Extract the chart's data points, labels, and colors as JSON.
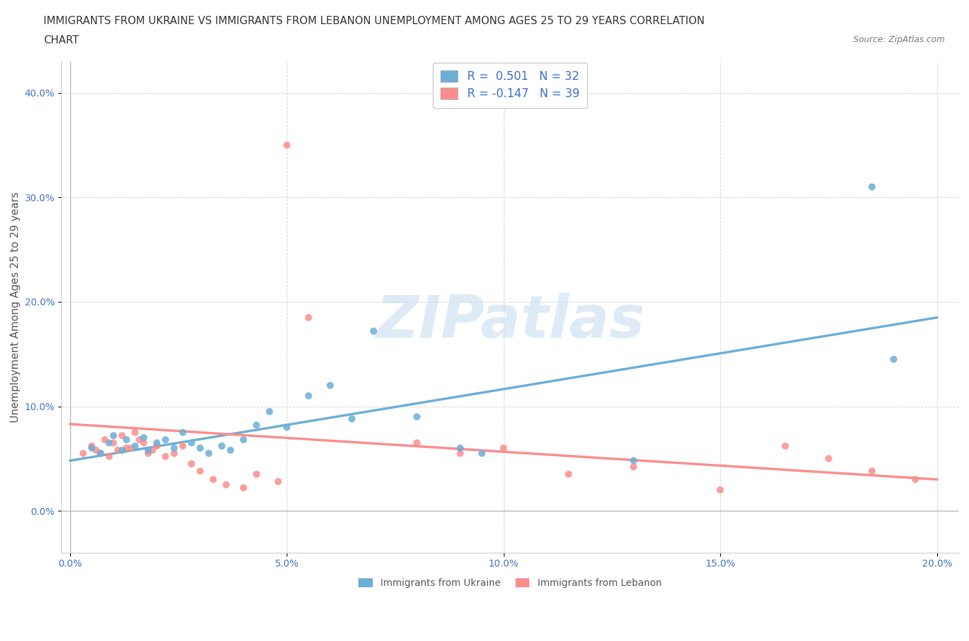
{
  "title_line1": "IMMIGRANTS FROM UKRAINE VS IMMIGRANTS FROM LEBANON UNEMPLOYMENT AMONG AGES 25 TO 29 YEARS CORRELATION",
  "title_line2": "CHART",
  "source": "Source: ZipAtlas.com",
  "ylabel": "Unemployment Among Ages 25 to 29 years",
  "watermark": "ZIPatlas",
  "ukraine_color": "#6baed6",
  "lebanon_color": "#fc8d8d",
  "ukraine_R": 0.501,
  "ukraine_N": 32,
  "lebanon_R": -0.147,
  "lebanon_N": 39,
  "xlim": [
    -0.002,
    0.205
  ],
  "ylim": [
    -0.04,
    0.43
  ],
  "xticks": [
    0.0,
    0.05,
    0.1,
    0.15,
    0.2
  ],
  "yticks": [
    0.0,
    0.1,
    0.2,
    0.3,
    0.4
  ],
  "ukraine_scatter_x": [
    0.005,
    0.007,
    0.009,
    0.01,
    0.012,
    0.013,
    0.015,
    0.017,
    0.018,
    0.02,
    0.022,
    0.024,
    0.026,
    0.028,
    0.03,
    0.032,
    0.035,
    0.037,
    0.04,
    0.043,
    0.046,
    0.05,
    0.055,
    0.06,
    0.065,
    0.07,
    0.08,
    0.09,
    0.095,
    0.13,
    0.185,
    0.19
  ],
  "ukraine_scatter_y": [
    0.06,
    0.055,
    0.065,
    0.072,
    0.058,
    0.068,
    0.062,
    0.07,
    0.058,
    0.065,
    0.068,
    0.06,
    0.075,
    0.065,
    0.06,
    0.055,
    0.062,
    0.058,
    0.068,
    0.082,
    0.095,
    0.08,
    0.11,
    0.12,
    0.088,
    0.172,
    0.09,
    0.06,
    0.055,
    0.048,
    0.31,
    0.145
  ],
  "lebanon_scatter_x": [
    0.003,
    0.005,
    0.006,
    0.007,
    0.008,
    0.009,
    0.01,
    0.011,
    0.012,
    0.013,
    0.014,
    0.015,
    0.016,
    0.017,
    0.018,
    0.019,
    0.02,
    0.022,
    0.024,
    0.026,
    0.028,
    0.03,
    0.033,
    0.036,
    0.04,
    0.043,
    0.048,
    0.05,
    0.055,
    0.08,
    0.09,
    0.1,
    0.115,
    0.13,
    0.15,
    0.165,
    0.175,
    0.185,
    0.195
  ],
  "lebanon_scatter_y": [
    0.055,
    0.062,
    0.058,
    0.055,
    0.068,
    0.052,
    0.065,
    0.058,
    0.072,
    0.06,
    0.06,
    0.075,
    0.068,
    0.065,
    0.055,
    0.058,
    0.062,
    0.052,
    0.055,
    0.062,
    0.045,
    0.038,
    0.03,
    0.025,
    0.022,
    0.035,
    0.028,
    0.35,
    0.185,
    0.065,
    0.055,
    0.06,
    0.035,
    0.042,
    0.02,
    0.062,
    0.05,
    0.038,
    0.03
  ],
  "ukraine_trend_x": [
    0.0,
    0.2
  ],
  "ukraine_trend_y": [
    0.048,
    0.185
  ],
  "lebanon_trend_x": [
    0.0,
    0.2
  ],
  "lebanon_trend_y": [
    0.083,
    0.03
  ],
  "background_color": "#ffffff",
  "grid_color": "#cccccc",
  "title_fontsize": 11,
  "label_fontsize": 11,
  "tick_fontsize": 10,
  "legend_fontsize": 12
}
